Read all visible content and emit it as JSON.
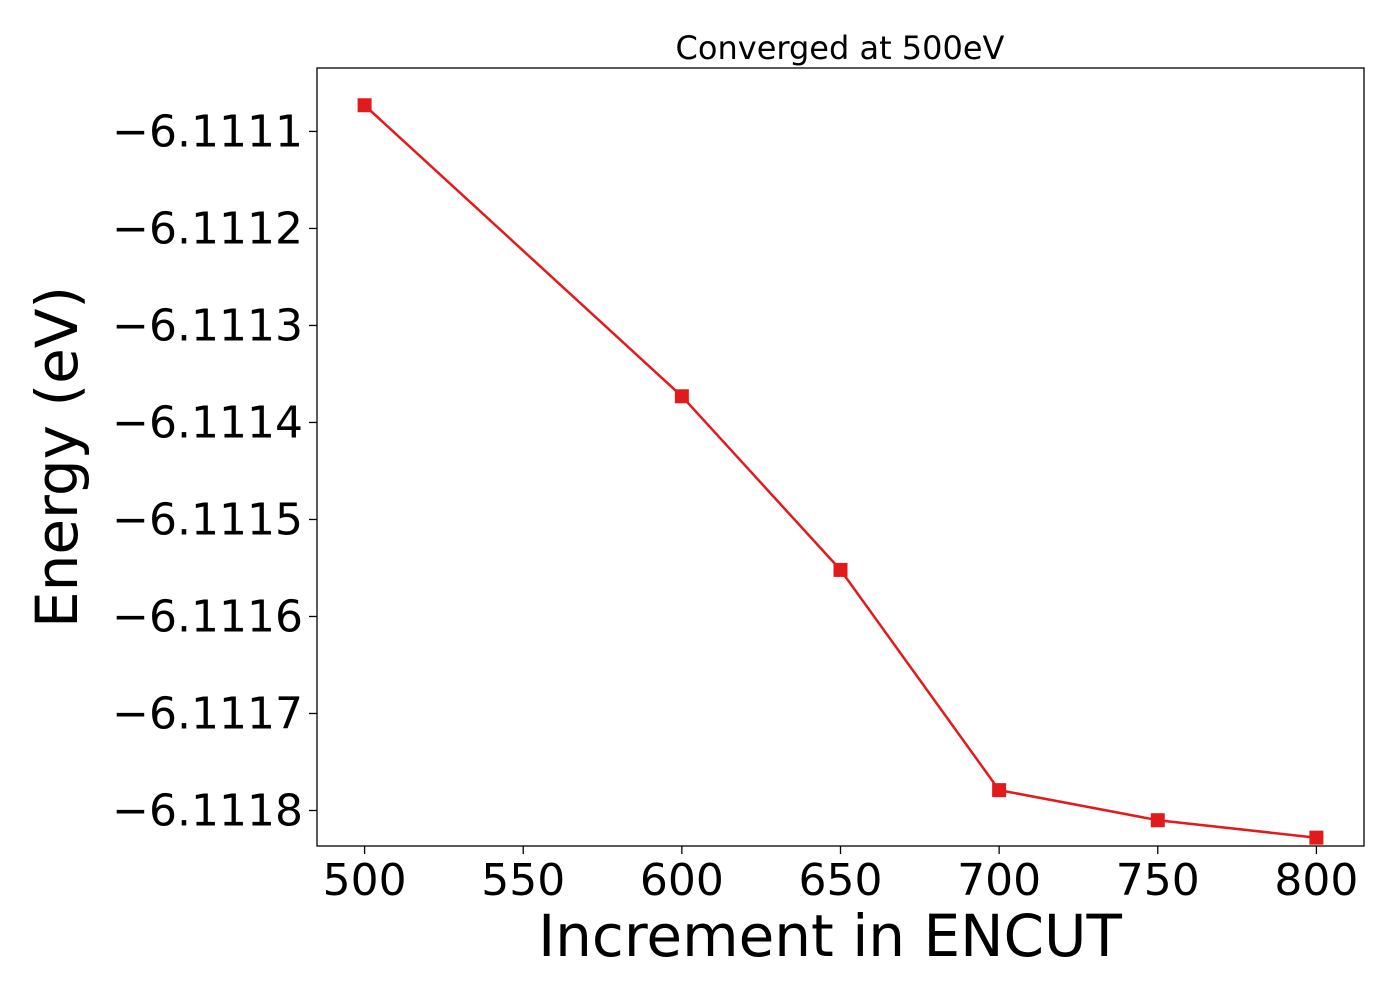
{
  "chart_data": {
    "type": "line",
    "title": "Converged at 500eV",
    "xlabel": "Increment in ENCUT",
    "ylabel": "Energy (eV)",
    "x": [
      500,
      600,
      650,
      700,
      750,
      800
    ],
    "series": [
      {
        "values": [
          -6.111073,
          -6.111373,
          -6.111552,
          -6.111779,
          -6.11181,
          -6.111828
        ],
        "color": "#e31a1c",
        "marker": "square"
      }
    ],
    "xlim": [
      485,
      815
    ],
    "ylim": [
      -6.1118366,
      -6.1110346
    ],
    "x_ticks": [
      500,
      550,
      600,
      650,
      700,
      750,
      800
    ],
    "x_tick_labels": [
      "500",
      "550",
      "600",
      "650",
      "700",
      "750",
      "800"
    ],
    "y_ticks": [
      -6.1111,
      -6.1112,
      -6.1113,
      -6.1114,
      -6.1115,
      -6.1116,
      -6.1117,
      -6.1118
    ],
    "y_tick_labels": [
      "−6.1111",
      "−6.1112",
      "−6.1113",
      "−6.1114",
      "−6.1115",
      "−6.1116",
      "−6.1117",
      "−6.1118"
    ],
    "grid": false,
    "legend": "none"
  }
}
